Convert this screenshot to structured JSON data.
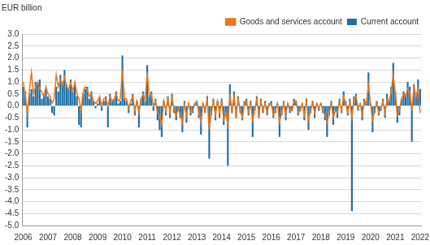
{
  "chart_data": {
    "type": "bar",
    "y_label": "EUR billion",
    "categories": [
      "2006",
      null,
      null,
      null,
      null,
      null,
      null,
      null,
      null,
      null,
      null,
      null,
      "2007",
      null,
      null,
      null,
      null,
      null,
      null,
      null,
      null,
      null,
      null,
      null,
      "2008",
      null,
      null,
      null,
      null,
      null,
      null,
      null,
      null,
      null,
      null,
      null,
      "2009",
      null,
      null,
      null,
      null,
      null,
      null,
      null,
      null,
      null,
      null,
      null,
      "2010",
      null,
      null,
      null,
      null,
      null,
      null,
      null,
      null,
      null,
      null,
      null,
      "2011",
      null,
      null,
      null,
      null,
      null,
      null,
      null,
      null,
      null,
      null,
      null,
      "2012",
      null,
      null,
      null,
      null,
      null,
      null,
      null,
      null,
      null,
      null,
      null,
      "2013",
      null,
      null,
      null,
      null,
      null,
      null,
      null,
      null,
      null,
      null,
      null,
      "2014",
      null,
      null,
      null,
      null,
      null,
      null,
      null,
      null,
      null,
      null,
      null,
      "2015",
      null,
      null,
      null,
      null,
      null,
      null,
      null,
      null,
      null,
      null,
      null,
      "2016",
      null,
      null,
      null,
      null,
      null,
      null,
      null,
      null,
      null,
      null,
      null,
      "2017",
      null,
      null,
      null,
      null,
      null,
      null,
      null,
      null,
      null,
      null,
      null,
      "2018",
      null,
      null,
      null,
      null,
      null,
      null,
      null,
      null,
      null,
      null,
      null,
      "2019",
      null,
      null,
      null,
      null,
      null,
      null,
      null,
      null,
      null,
      null,
      null,
      "2020",
      null,
      null,
      null,
      null,
      null,
      null,
      null,
      null,
      null,
      null,
      null,
      "2021",
      null,
      null,
      null,
      null,
      null,
      null,
      null,
      null,
      null,
      null,
      null,
      "2022"
    ],
    "series": [
      {
        "name": "Current account",
        "type": "bar",
        "color": "#1f6fa8",
        "values": [
          0.8,
          0.6,
          -0.9,
          0.5,
          0.7,
          0.4,
          1.0,
          0.9,
          1.1,
          0.3,
          0.5,
          0.7,
          0.4,
          0.3,
          -0.3,
          -0.4,
          0.8,
          0.6,
          1.3,
          1.0,
          1.5,
          0.9,
          0.7,
          1.1,
          0.6,
          0.9,
          0.4,
          -0.8,
          -0.9,
          0.5,
          0.7,
          0.8,
          0.3,
          0.6,
          0.2,
          -0.1,
          0.1,
          0.3,
          -0.2,
          0.2,
          0.4,
          -0.9,
          0.5,
          0.2,
          0.3,
          0.6,
          0.1,
          0.2,
          2.1,
          0.3,
          0.2,
          -0.3,
          0.1,
          0.5,
          -0.4,
          0.2,
          -0.9,
          0.3,
          0.6,
          0.2,
          1.7,
          0.4,
          0.6,
          -0.2,
          0.3,
          -0.6,
          -1.0,
          -1.3,
          0.2,
          -0.4,
          0.4,
          -0.5,
          0.5,
          -0.3,
          -0.6,
          -0.2,
          -0.5,
          -1.1,
          0.2,
          -0.7,
          0.1,
          -0.4,
          -0.3,
          0.1,
          0.2,
          -0.5,
          -1.2,
          0.1,
          -0.3,
          0.4,
          -2.2,
          -0.4,
          0.3,
          -0.6,
          0.2,
          -0.5,
          0.3,
          -0.8,
          -0.4,
          -2.5,
          0.9,
          -0.3,
          0.6,
          -0.5,
          0.4,
          -0.3,
          -0.6,
          0.2,
          0.3,
          -0.4,
          0.2,
          -1.3,
          -0.2,
          0.4,
          -0.5,
          0.3,
          -0.3,
          0.2,
          -0.4,
          0.1,
          0.2,
          -0.5,
          -0.3,
          0.1,
          -1.3,
          -0.4,
          0.2,
          -0.6,
          0.1,
          -0.3,
          -0.2,
          0.3,
          0.2,
          -0.4,
          -0.2,
          0.1,
          -0.6,
          0.3,
          -1.0,
          -0.3,
          0.2,
          -0.5,
          0.1,
          -0.2,
          0.1,
          -0.3,
          -0.6,
          -1.3,
          -0.4,
          0.2,
          -0.8,
          -0.2,
          -0.5,
          0.3,
          -0.3,
          0.6,
          0.2,
          -0.4,
          0.3,
          -4.4,
          0.4,
          0.5,
          -0.2,
          0.1,
          -0.6,
          0.3,
          0.2,
          1.4,
          0.1,
          -1.1,
          -0.3,
          0.2,
          -0.4,
          -0.2,
          0.3,
          -0.5,
          0.5,
          0.2,
          0.8,
          1.8,
          0.6,
          -0.7,
          -0.4,
          0.3,
          0.6,
          0.5,
          1.0,
          0.8,
          -1.5,
          0.9,
          0.4,
          1.1,
          0.7
        ]
      },
      {
        "name": "Goods and services account",
        "type": "line",
        "color": "#e8771a",
        "values": [
          1.0,
          0.5,
          -0.3,
          0.6,
          1.4,
          0.5,
          0.8,
          1.0,
          0.7,
          0.6,
          0.4,
          0.8,
          0.5,
          0.4,
          0.1,
          0.3,
          1.3,
          0.8,
          1.1,
          0.9,
          1.2,
          0.8,
          0.7,
          1.0,
          0.6,
          1.0,
          0.5,
          0.3,
          -0.2,
          0.6,
          0.8,
          0.7,
          0.4,
          0.5,
          0.2,
          0.1,
          0.2,
          0.4,
          0.0,
          0.3,
          0.3,
          0.0,
          0.4,
          0.2,
          0.3,
          0.5,
          0.2,
          0.3,
          1.5,
          0.3,
          0.3,
          -0.1,
          0.2,
          0.4,
          -0.2,
          0.2,
          -0.3,
          0.3,
          0.5,
          0.2,
          1.4,
          0.4,
          0.5,
          0.0,
          0.2,
          -0.3,
          -0.4,
          -0.8,
          0.2,
          -0.2,
          0.3,
          -0.3,
          0.4,
          -0.2,
          -0.4,
          -0.1,
          -0.4,
          -0.7,
          0.1,
          -0.4,
          0.1,
          -0.3,
          -0.2,
          0.1,
          0.2,
          -0.3,
          -0.7,
          0.1,
          -0.2,
          0.3,
          -1.0,
          -0.3,
          0.2,
          -0.4,
          0.2,
          -0.3,
          0.2,
          -0.6,
          -0.3,
          -0.8,
          0.5,
          -0.2,
          0.4,
          -0.4,
          0.3,
          -0.2,
          -0.5,
          0.1,
          0.2,
          -0.3,
          0.1,
          -0.6,
          -0.2,
          0.3,
          -0.4,
          0.2,
          -0.2,
          0.1,
          -0.3,
          0.1,
          0.1,
          -0.4,
          -0.2,
          0.1,
          -0.7,
          -0.3,
          0.1,
          -0.4,
          0.1,
          -0.2,
          -0.2,
          0.2,
          0.2,
          -0.3,
          -0.2,
          0.1,
          -0.4,
          0.2,
          -0.6,
          -0.2,
          0.1,
          -0.3,
          0.1,
          -0.1,
          0.1,
          -0.2,
          -0.4,
          -0.7,
          -0.3,
          0.1,
          -0.5,
          -0.2,
          -0.3,
          0.2,
          -0.2,
          0.4,
          0.1,
          -0.3,
          0.2,
          -0.5,
          0.3,
          0.4,
          -0.1,
          0.1,
          -0.4,
          0.2,
          0.1,
          0.9,
          0.1,
          -0.6,
          -0.2,
          0.1,
          -0.3,
          -0.1,
          0.2,
          -0.3,
          0.3,
          0.2,
          0.6,
          1.3,
          0.5,
          -0.4,
          -0.2,
          0.3,
          0.5,
          0.4,
          0.7,
          0.6,
          -0.2,
          0.8,
          0.4,
          0.7,
          -0.3
        ]
      }
    ],
    "ylim": [
      -5,
      3
    ],
    "yticks": [
      {
        "value": -5,
        "label": "-5.0"
      },
      -4.5,
      {
        "value": -4,
        "label": "-4.0"
      },
      -3.5,
      {
        "value": -3,
        "label": "-3.0"
      },
      -2.5,
      {
        "value": -2,
        "label": "-2.0"
      },
      -1.5,
      {
        "value": -1,
        "label": "-1.0"
      },
      -0.5,
      {
        "value": 0,
        "label": "0.0"
      },
      0.5,
      {
        "value": 1,
        "label": "1.0"
      },
      1.5,
      {
        "value": 2,
        "label": "2.0"
      },
      2.5,
      {
        "value": 3,
        "label": "3.0"
      }
    ],
    "grid": true,
    "legend": "upper right"
  }
}
